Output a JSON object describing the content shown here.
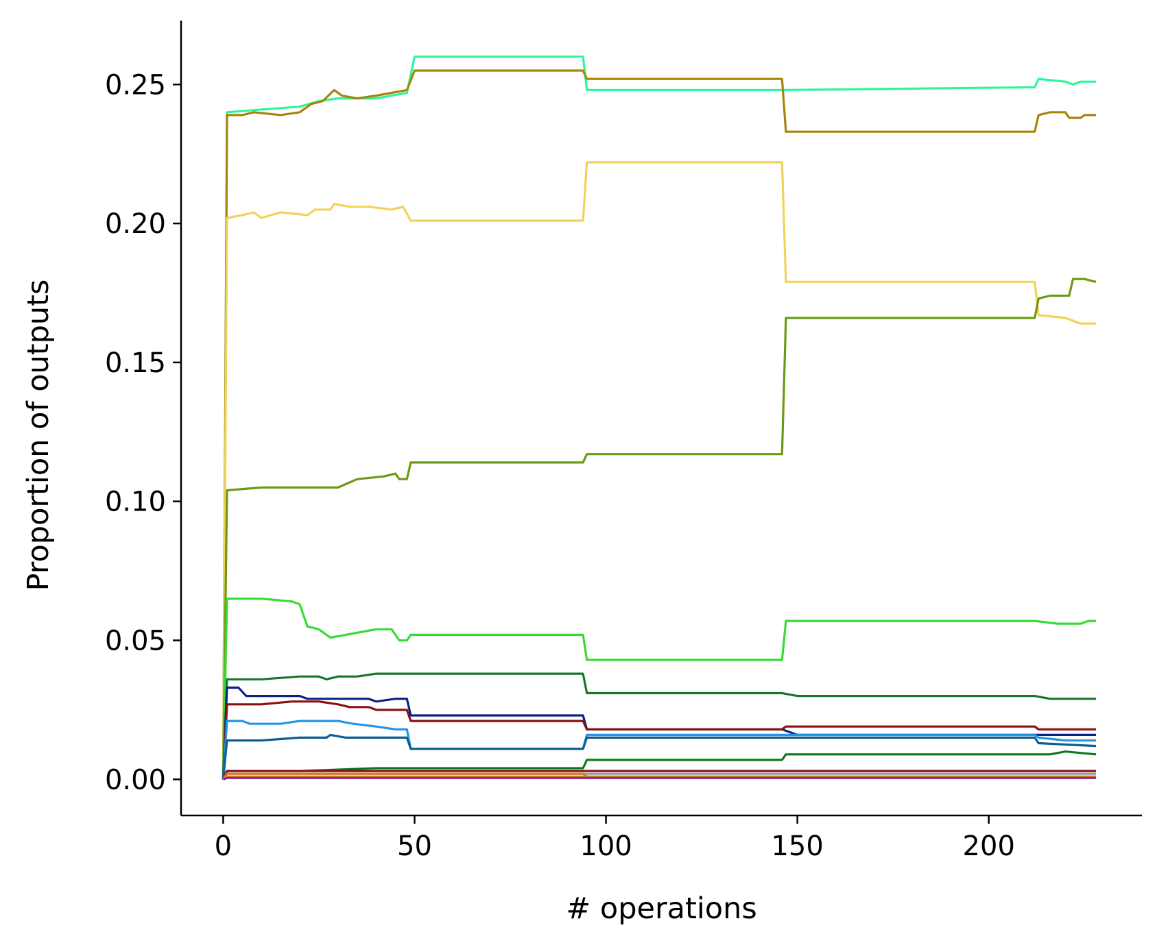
{
  "chart_data": {
    "type": "line",
    "title": "",
    "xlabel": "# operations",
    "ylabel": "Proportion of outputs",
    "xlim": [
      -11,
      240
    ],
    "ylim": [
      -0.013,
      0.273
    ],
    "xticks": [
      0,
      50,
      100,
      150,
      200
    ],
    "xtick_labels": [
      "0",
      "50",
      "100",
      "150",
      "200"
    ],
    "yticks": [
      0.0,
      0.05,
      0.1,
      0.15,
      0.2,
      0.25
    ],
    "ytick_labels": [
      "0.00",
      "0.05",
      "0.10",
      "0.15",
      "0.20",
      "0.25"
    ],
    "grid": false,
    "legend": "none",
    "series": [
      {
        "color": "#2ef59b",
        "points": [
          [
            0,
            0
          ],
          [
            1,
            0.24
          ],
          [
            10,
            0.241
          ],
          [
            20,
            0.242
          ],
          [
            25,
            0.244
          ],
          [
            30,
            0.245
          ],
          [
            40,
            0.245
          ],
          [
            48,
            0.247
          ],
          [
            50,
            0.26
          ],
          [
            94,
            0.26
          ],
          [
            95,
            0.248
          ],
          [
            147,
            0.248
          ],
          [
            212,
            0.249
          ],
          [
            213,
            0.252
          ],
          [
            220,
            0.251
          ],
          [
            222,
            0.25
          ],
          [
            224,
            0.251
          ],
          [
            228,
            0.251
          ]
        ]
      },
      {
        "color": "#a6840a",
        "points": [
          [
            0,
            0
          ],
          [
            1,
            0.239
          ],
          [
            5,
            0.239
          ],
          [
            8,
            0.24
          ],
          [
            15,
            0.239
          ],
          [
            20,
            0.24
          ],
          [
            23,
            0.243
          ],
          [
            26,
            0.244
          ],
          [
            29,
            0.248
          ],
          [
            31,
            0.246
          ],
          [
            35,
            0.245
          ],
          [
            40,
            0.246
          ],
          [
            44,
            0.247
          ],
          [
            48,
            0.248
          ],
          [
            50,
            0.255
          ],
          [
            94,
            0.255
          ],
          [
            95,
            0.252
          ],
          [
            146,
            0.252
          ],
          [
            147,
            0.233
          ],
          [
            212,
            0.233
          ],
          [
            213,
            0.239
          ],
          [
            216,
            0.24
          ],
          [
            220,
            0.24
          ],
          [
            221,
            0.238
          ],
          [
            224,
            0.238
          ],
          [
            225,
            0.239
          ],
          [
            228,
            0.239
          ]
        ]
      },
      {
        "color": "#f2d25a",
        "points": [
          [
            0,
            0
          ],
          [
            1,
            0.202
          ],
          [
            5,
            0.203
          ],
          [
            8,
            0.204
          ],
          [
            10,
            0.202
          ],
          [
            15,
            0.204
          ],
          [
            22,
            0.203
          ],
          [
            24,
            0.205
          ],
          [
            28,
            0.205
          ],
          [
            29,
            0.207
          ],
          [
            33,
            0.206
          ],
          [
            38,
            0.206
          ],
          [
            44,
            0.205
          ],
          [
            47,
            0.206
          ],
          [
            49,
            0.201
          ],
          [
            50,
            0.201
          ],
          [
            94,
            0.201
          ],
          [
            95,
            0.222
          ],
          [
            146,
            0.222
          ],
          [
            147,
            0.179
          ],
          [
            212,
            0.179
          ],
          [
            213,
            0.167
          ],
          [
            220,
            0.166
          ],
          [
            224,
            0.164
          ],
          [
            228,
            0.164
          ]
        ]
      },
      {
        "color": "#6b9a12",
        "points": [
          [
            0,
            0
          ],
          [
            1,
            0.104
          ],
          [
            10,
            0.105
          ],
          [
            25,
            0.105
          ],
          [
            30,
            0.105
          ],
          [
            35,
            0.108
          ],
          [
            42,
            0.109
          ],
          [
            45,
            0.11
          ],
          [
            46,
            0.108
          ],
          [
            48,
            0.108
          ],
          [
            49,
            0.114
          ],
          [
            94,
            0.114
          ],
          [
            95,
            0.117
          ],
          [
            146,
            0.117
          ],
          [
            147,
            0.166
          ],
          [
            212,
            0.166
          ],
          [
            213,
            0.173
          ],
          [
            216,
            0.174
          ],
          [
            221,
            0.174
          ],
          [
            222,
            0.18
          ],
          [
            225,
            0.18
          ],
          [
            228,
            0.179
          ]
        ]
      },
      {
        "color": "#36dc33",
        "points": [
          [
            0,
            0
          ],
          [
            1,
            0.065
          ],
          [
            10,
            0.065
          ],
          [
            18,
            0.064
          ],
          [
            20,
            0.063
          ],
          [
            22,
            0.055
          ],
          [
            25,
            0.054
          ],
          [
            28,
            0.051
          ],
          [
            32,
            0.052
          ],
          [
            36,
            0.053
          ],
          [
            40,
            0.054
          ],
          [
            44,
            0.054
          ],
          [
            46,
            0.05
          ],
          [
            48,
            0.05
          ],
          [
            49,
            0.052
          ],
          [
            94,
            0.052
          ],
          [
            95,
            0.043
          ],
          [
            146,
            0.043
          ],
          [
            147,
            0.057
          ],
          [
            212,
            0.057
          ],
          [
            218,
            0.056
          ],
          [
            224,
            0.056
          ],
          [
            226,
            0.057
          ],
          [
            228,
            0.057
          ]
        ]
      },
      {
        "color": "#17762b",
        "points": [
          [
            0,
            0
          ],
          [
            1,
            0.036
          ],
          [
            10,
            0.036
          ],
          [
            20,
            0.037
          ],
          [
            25,
            0.037
          ],
          [
            27,
            0.036
          ],
          [
            30,
            0.037
          ],
          [
            35,
            0.037
          ],
          [
            40,
            0.038
          ],
          [
            48,
            0.038
          ],
          [
            50,
            0.038
          ],
          [
            94,
            0.038
          ],
          [
            95,
            0.031
          ],
          [
            146,
            0.031
          ],
          [
            150,
            0.03
          ],
          [
            212,
            0.03
          ],
          [
            216,
            0.029
          ],
          [
            224,
            0.029
          ],
          [
            228,
            0.029
          ]
        ]
      },
      {
        "color": "#0d2185",
        "points": [
          [
            0,
            0
          ],
          [
            1,
            0.033
          ],
          [
            4,
            0.033
          ],
          [
            6,
            0.03
          ],
          [
            10,
            0.03
          ],
          [
            20,
            0.03
          ],
          [
            22,
            0.029
          ],
          [
            30,
            0.029
          ],
          [
            38,
            0.029
          ],
          [
            40,
            0.028
          ],
          [
            45,
            0.029
          ],
          [
            48,
            0.029
          ],
          [
            49,
            0.023
          ],
          [
            94,
            0.023
          ],
          [
            95,
            0.018
          ],
          [
            146,
            0.018
          ],
          [
            150,
            0.016
          ],
          [
            212,
            0.016
          ],
          [
            216,
            0.016
          ],
          [
            224,
            0.016
          ],
          [
            228,
            0.016
          ]
        ]
      },
      {
        "color": "#8a1010",
        "points": [
          [
            0,
            0
          ],
          [
            1,
            0.027
          ],
          [
            10,
            0.027
          ],
          [
            18,
            0.028
          ],
          [
            25,
            0.028
          ],
          [
            30,
            0.027
          ],
          [
            33,
            0.026
          ],
          [
            38,
            0.026
          ],
          [
            40,
            0.025
          ],
          [
            45,
            0.025
          ],
          [
            48,
            0.025
          ],
          [
            49,
            0.021
          ],
          [
            94,
            0.021
          ],
          [
            95,
            0.018
          ],
          [
            146,
            0.018
          ],
          [
            147,
            0.019
          ],
          [
            212,
            0.019
          ],
          [
            213,
            0.018
          ],
          [
            228,
            0.018
          ]
        ]
      },
      {
        "color": "#2196e8",
        "points": [
          [
            0,
            0
          ],
          [
            1,
            0.021
          ],
          [
            5,
            0.021
          ],
          [
            7,
            0.02
          ],
          [
            15,
            0.02
          ],
          [
            20,
            0.021
          ],
          [
            25,
            0.021
          ],
          [
            30,
            0.021
          ],
          [
            34,
            0.02
          ],
          [
            40,
            0.019
          ],
          [
            45,
            0.018
          ],
          [
            48,
            0.018
          ],
          [
            49,
            0.011
          ],
          [
            94,
            0.011
          ],
          [
            95,
            0.016
          ],
          [
            146,
            0.016
          ],
          [
            212,
            0.016
          ],
          [
            213,
            0.015
          ],
          [
            220,
            0.014
          ],
          [
            228,
            0.014
          ]
        ]
      },
      {
        "color": "#0b5d92",
        "points": [
          [
            0,
            0
          ],
          [
            1,
            0.014
          ],
          [
            10,
            0.014
          ],
          [
            20,
            0.015
          ],
          [
            27,
            0.015
          ],
          [
            28,
            0.016
          ],
          [
            32,
            0.015
          ],
          [
            40,
            0.015
          ],
          [
            48,
            0.015
          ],
          [
            49,
            0.011
          ],
          [
            94,
            0.011
          ],
          [
            95,
            0.015
          ],
          [
            146,
            0.015
          ],
          [
            212,
            0.015
          ],
          [
            213,
            0.013
          ],
          [
            228,
            0.012
          ]
        ]
      },
      {
        "color": "#0b7a1a",
        "points": [
          [
            0,
            0
          ],
          [
            1,
            0.003
          ],
          [
            20,
            0.003
          ],
          [
            40,
            0.004
          ],
          [
            94,
            0.004
          ],
          [
            95,
            0.007
          ],
          [
            146,
            0.007
          ],
          [
            147,
            0.009
          ],
          [
            212,
            0.009
          ],
          [
            216,
            0.009
          ],
          [
            220,
            0.01
          ],
          [
            228,
            0.009
          ]
        ]
      },
      {
        "color": "#8a1020",
        "points": [
          [
            0,
            0
          ],
          [
            1,
            0.003
          ],
          [
            50,
            0.003
          ],
          [
            94,
            0.003
          ],
          [
            95,
            0.003
          ],
          [
            228,
            0.003
          ]
        ]
      },
      {
        "color": "#9a9a9a",
        "points": [
          [
            0,
            0
          ],
          [
            1,
            0.002
          ],
          [
            228,
            0.002
          ]
        ]
      },
      {
        "color": "#e07a10",
        "points": [
          [
            0,
            0
          ],
          [
            1,
            0.002
          ],
          [
            50,
            0.002
          ],
          [
            94,
            0.002
          ],
          [
            95,
            0.001
          ],
          [
            228,
            0.001
          ]
        ]
      },
      {
        "color": "#c9a400",
        "points": [
          [
            0,
            0
          ],
          [
            1,
            0.001
          ],
          [
            228,
            0.001
          ]
        ]
      },
      {
        "color": "#9b12a8",
        "points": [
          [
            0,
            0
          ],
          [
            1,
            0.0005
          ],
          [
            228,
            0.0005
          ]
        ]
      }
    ]
  }
}
